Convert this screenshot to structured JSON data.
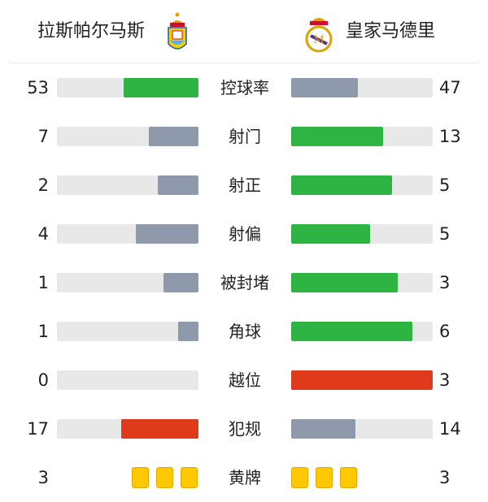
{
  "home": {
    "name": "拉斯帕尔马斯",
    "logo": "las-palmas-crest"
  },
  "away": {
    "name": "皇家马德里",
    "logo": "real-madrid-crest"
  },
  "colors": {
    "green": "#2db443",
    "gray": "#8e9aab",
    "red": "#e03a1c",
    "track": "#e8e8e8",
    "card": "#fdc800"
  },
  "stats": [
    {
      "label": "控球率",
      "home": "53",
      "away": "47",
      "home_color": "green",
      "away_color": "gray"
    },
    {
      "label": "射门",
      "home": "7",
      "away": "13",
      "home_color": "gray",
      "away_color": "green"
    },
    {
      "label": "射正",
      "home": "2",
      "away": "5",
      "home_color": "gray",
      "away_color": "green"
    },
    {
      "label": "射偏",
      "home": "4",
      "away": "5",
      "home_color": "gray",
      "away_color": "green"
    },
    {
      "label": "被封堵",
      "home": "1",
      "away": "3",
      "home_color": "gray",
      "away_color": "green"
    },
    {
      "label": "角球",
      "home": "1",
      "away": "6",
      "home_color": "gray",
      "away_color": "green"
    },
    {
      "label": "越位",
      "home": "0",
      "away": "3",
      "home_color": "gray",
      "away_color": "red"
    },
    {
      "label": "犯规",
      "home": "17",
      "away": "14",
      "home_color": "red",
      "away_color": "gray"
    },
    {
      "label": "黄牌",
      "home": "3",
      "away": "3",
      "type": "cards"
    }
  ]
}
